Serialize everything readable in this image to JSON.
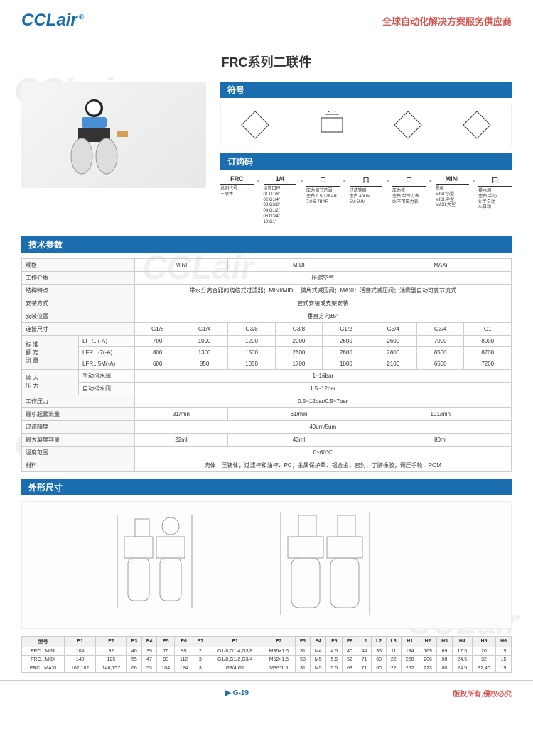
{
  "header": {
    "logo": "CCLair",
    "tagline": "全球自动化解决方案服务供应商"
  },
  "title": "FRC系列二联件",
  "sections": {
    "symbol": "符号",
    "order": "订购码",
    "tech": "技术参数",
    "dim": "外形尺寸"
  },
  "order": {
    "items": [
      {
        "top": "FRC",
        "desc": "系列代号\n三联件"
      },
      {
        "top": "1/4",
        "desc": "接管口径\n01:G1/8\"\n02:G1/4\"\n03:G3/8\"\n04:G1/2\"\n06:G3/4\"\n10:G1\""
      },
      {
        "top": "口",
        "desc": "压力调节范围\n空白:0.5-12BAR\n7:0.5-7BAR"
      },
      {
        "top": "口",
        "desc": "过滤等级\n空白:40UM\n5M:5UM"
      },
      {
        "top": "口",
        "desc": "压力表\n空白:带压力表\nO:不带压力表"
      },
      {
        "top": "MINI",
        "desc": "规格\nMINI:小型\nMIDI:中型\nMAXI:大型"
      },
      {
        "top": "口",
        "desc": "排水阀\n空白:手动\nS:半自动\nA:自动"
      }
    ]
  },
  "tech": {
    "headers": [
      "MINI",
      "MIDI",
      "MAXi"
    ],
    "rows": [
      {
        "label": "规格",
        "vals": [
          "MINI",
          "MIDI",
          "MAXi"
        ],
        "span": [
          2,
          3,
          3
        ]
      },
      {
        "label": "工作介质",
        "val": "压缩空气"
      },
      {
        "label": "结构特点",
        "val": "带水分离合器的烧结式过滤器；MINI/MIDI：膜片式减压阀；MAXI：活塞式减压阀；油雾型自动可变节流式"
      },
      {
        "label": "安装方式",
        "val": "管式安装或支架安装"
      },
      {
        "label": "安装位置",
        "val": "垂直方向±5°"
      },
      {
        "label": "连接尺寸",
        "cells": [
          "G1/8",
          "G1/4",
          "G3/8",
          "G3/8",
          "G1/2",
          "G3/4",
          "G3/4",
          "G1"
        ]
      },
      {
        "label": "标 准\n额 定\n流 量",
        "sub": [
          {
            "l": "LFR...(-A)",
            "cells": [
              "700",
              "1000",
              "1200",
              "2000",
              "2600",
              "2600",
              "7000",
              "8000"
            ]
          },
          {
            "l": "LFR...-7(-A)",
            "cells": [
              "800",
              "1300",
              "1500",
              "2500",
              "2800",
              "2800",
              "8500",
              "8700"
            ]
          },
          {
            "l": "LFR...5M(-A)",
            "cells": [
              "600",
              "850",
              "1050",
              "1700",
              "1800",
              "2100",
              "6500",
              "7200"
            ]
          }
        ]
      },
      {
        "label": "输 入\n压 力",
        "sub": [
          {
            "l": "手动排水阀",
            "val": "1~16bar"
          },
          {
            "l": "自动排水阀",
            "val": "1.5~12bar"
          }
        ]
      },
      {
        "label": "工作压力",
        "val": "0.5~12bar/0.5~7bar"
      },
      {
        "label": "最小起雾流量",
        "vals": [
          "31/min",
          "61/min",
          "101/min"
        ],
        "span": [
          2,
          3,
          3
        ]
      },
      {
        "label": "过滤精度",
        "val": "40um/5um"
      },
      {
        "label": "最大凝度容量",
        "vals": [
          "22ml",
          "43ml",
          "80ml"
        ],
        "span": [
          2,
          3,
          3
        ]
      },
      {
        "label": "温度范围",
        "val": "0~60℃"
      },
      {
        "label": "材料",
        "val": "壳体：压铸体；过滤杯和油杯：PC；金属保护罩：铝合金；密封：丁腈橡胶；调压手轮：POM"
      }
    ]
  },
  "dim": {
    "headers": [
      "型号",
      "E1",
      "E2",
      "E3",
      "E4",
      "E5",
      "E6",
      "E7",
      "F1",
      "F2",
      "F3",
      "F4",
      "F5",
      "F6",
      "L1",
      "L2",
      "L3",
      "H1",
      "H2",
      "H3",
      "H4",
      "H5",
      "H6"
    ],
    "rows": [
      [
        "FRC...MINI",
        "104",
        "92",
        "40",
        "39",
        "76",
        "95",
        "2",
        "G1/8,G1/4,G3/8",
        "M36×1.5",
        "31",
        "M4",
        "4.5",
        "40",
        "44",
        "35",
        "11",
        "194",
        "169",
        "69",
        "17.5",
        "20",
        "15"
      ],
      [
        "FRC...MIDI",
        "140",
        "125",
        "55",
        "47",
        "93",
        "112",
        "3",
        "G1/8,G1/2,G3/4",
        "M52×1.5",
        "50",
        "M5",
        "5.5",
        "52",
        "71",
        "60",
        "22",
        "250",
        "206",
        "98",
        "24.5",
        "32",
        "15"
      ],
      [
        "FRC...MAXI",
        "162,182",
        "146,157",
        "66",
        "53",
        "104",
        "124",
        "3",
        "G3/4,G1",
        "M36*1.5",
        "31",
        "M5",
        "5.5",
        "63",
        "71",
        "60",
        "22",
        "252",
        "223",
        "80",
        "24.5",
        "32,40",
        "15"
      ]
    ]
  },
  "footer": {
    "page": "G-19",
    "copyright": "版权所有,侵权必究"
  }
}
